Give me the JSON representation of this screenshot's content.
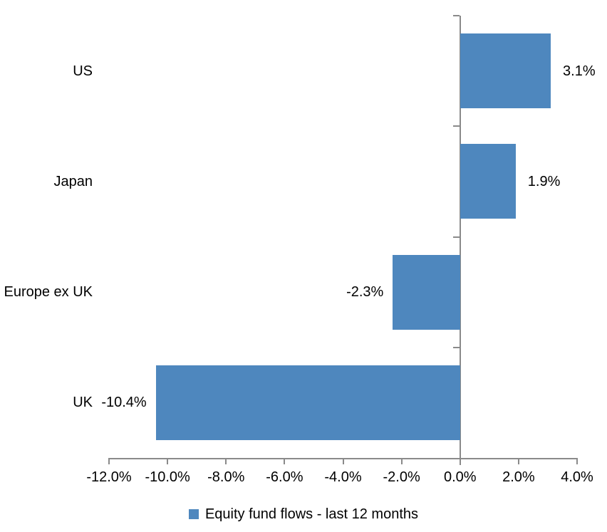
{
  "chart_data": {
    "type": "bar",
    "orientation": "horizontal",
    "title": "",
    "xlabel": "",
    "ylabel": "",
    "categories": [
      "US",
      "Japan",
      "Europe ex UK",
      "UK"
    ],
    "values": [
      3.1,
      1.9,
      -2.3,
      -10.4
    ],
    "value_labels": [
      "3.1%",
      "1.9%",
      "-2.3%",
      "-10.4%"
    ],
    "series_name": "Equity fund flows - last 12 months",
    "xlim": [
      -12,
      4
    ],
    "x_ticks": [
      -12,
      -10,
      -8,
      -6,
      -4,
      -2,
      0,
      2,
      4
    ],
    "x_tick_labels": [
      "-12.0%",
      "-10.0%",
      "-8.0%",
      "-6.0%",
      "-4.0%",
      "-2.0%",
      "0.0%",
      "2.0%",
      "4.0%"
    ],
    "grid": "off",
    "legend_position": "bottom",
    "bar_color": "#4E87BE",
    "axis_color": "#8A8A8A",
    "text_color": "#000000",
    "background_color": "#FFFFFF"
  },
  "legend": {
    "label": "Equity fund flows - last 12 months"
  }
}
